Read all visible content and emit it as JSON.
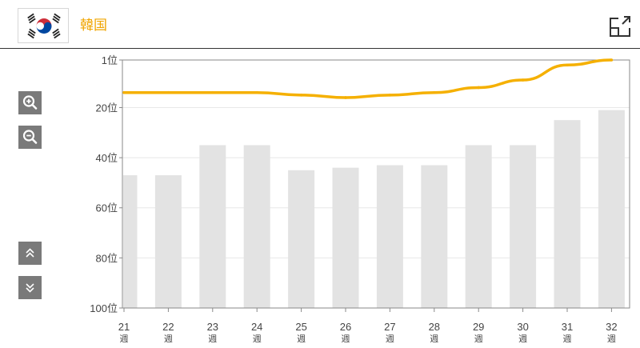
{
  "header": {
    "country": "韓国",
    "flag_icon": "south-korea-flag-icon",
    "expand_icon": "expand-icon"
  },
  "controls": {
    "zoom_in_icon": "zoom-in-icon",
    "zoom_out_icon": "zoom-out-icon",
    "scroll_up_icon": "double-chevron-up-icon",
    "scroll_down_icon": "double-chevron-down-icon"
  },
  "chart_data": {
    "type": "bar",
    "y_axis": {
      "reversed": true,
      "range": [
        1,
        100
      ],
      "ticks": [
        {
          "value": 1,
          "label": "1位"
        },
        {
          "value": 20,
          "label": "20位"
        },
        {
          "value": 40,
          "label": "40位"
        },
        {
          "value": 60,
          "label": "60位"
        },
        {
          "value": 80,
          "label": "80位"
        },
        {
          "value": 100,
          "label": "100位"
        }
      ]
    },
    "categories": [
      {
        "num": "21",
        "unit": "週"
      },
      {
        "num": "22",
        "unit": "週"
      },
      {
        "num": "23",
        "unit": "週"
      },
      {
        "num": "24",
        "unit": "週"
      },
      {
        "num": "25",
        "unit": "週"
      },
      {
        "num": "26",
        "unit": "週"
      },
      {
        "num": "27",
        "unit": "週"
      },
      {
        "num": "28",
        "unit": "週"
      },
      {
        "num": "29",
        "unit": "週"
      },
      {
        "num": "30",
        "unit": "週"
      },
      {
        "num": "31",
        "unit": "週"
      },
      {
        "num": "32",
        "unit": "週"
      }
    ],
    "bar_values": [
      47,
      47,
      35,
      35,
      45,
      44,
      43,
      43,
      35,
      35,
      25,
      21
    ],
    "line_values": [
      14,
      14,
      14,
      14,
      15,
      16,
      15,
      14,
      12,
      9,
      3,
      1
    ],
    "grid": true,
    "colors": {
      "bar": "#e3e3e3",
      "line": "#f5b000",
      "grid": "#e8e8e8",
      "axis": "#8a8a8a"
    }
  }
}
